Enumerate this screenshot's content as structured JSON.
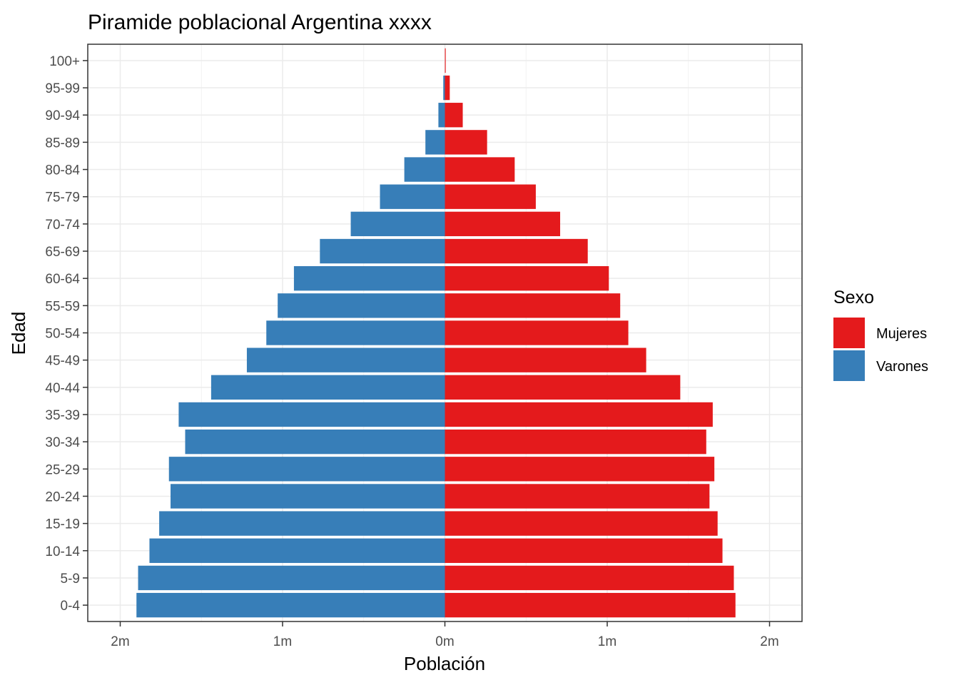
{
  "chart_data": {
    "type": "bar",
    "orientation": "horizontal",
    "title": "Piramide poblacional Argentina xxxx",
    "xlabel": "Población",
    "ylabel": "Edad",
    "xlim": [
      -2.2,
      2.2
    ],
    "x_ticks": [
      -2,
      -1,
      0,
      1,
      2
    ],
    "x_tick_labels": [
      "2m",
      "1m",
      "0m",
      "1m",
      "2m"
    ],
    "grid": true,
    "legend": {
      "title": "Sexo",
      "placement": "right"
    },
    "categories": [
      "0-4",
      "5-9",
      "10-14",
      "15-19",
      "20-24",
      "25-29",
      "30-34",
      "35-39",
      "40-44",
      "45-49",
      "50-54",
      "55-59",
      "60-64",
      "65-69",
      "70-74",
      "75-79",
      "80-84",
      "85-89",
      "90-94",
      "95-99",
      "100+"
    ],
    "series": [
      {
        "name": "Mujeres",
        "color": "#E41A1C",
        "values": [
          1.79,
          1.78,
          1.71,
          1.68,
          1.63,
          1.66,
          1.61,
          1.65,
          1.45,
          1.24,
          1.13,
          1.08,
          1.01,
          0.88,
          0.71,
          0.56,
          0.43,
          0.26,
          0.11,
          0.03,
          0.005
        ]
      },
      {
        "name": "Varones",
        "color": "#377EB8",
        "values": [
          -1.9,
          -1.89,
          -1.82,
          -1.76,
          -1.69,
          -1.7,
          -1.6,
          -1.64,
          -1.44,
          -1.22,
          -1.1,
          -1.03,
          -0.93,
          -0.77,
          -0.58,
          -0.4,
          -0.25,
          -0.12,
          -0.04,
          -0.01,
          0
        ]
      }
    ]
  }
}
